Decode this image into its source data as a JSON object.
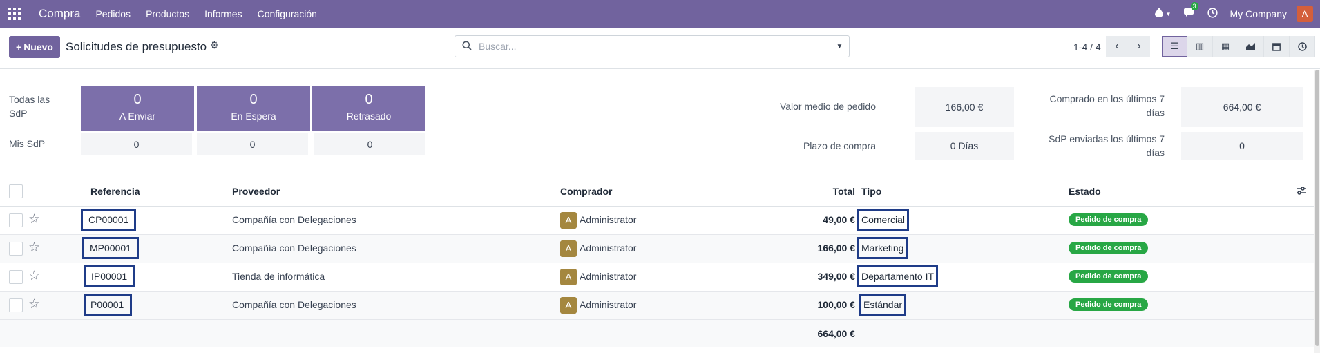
{
  "navbar": {
    "brand": "Compra",
    "menu": [
      "Pedidos",
      "Productos",
      "Informes",
      "Configuración"
    ],
    "messages_count": "3",
    "company": "My Company",
    "user_initial": "A"
  },
  "control": {
    "new_label": "Nuevo",
    "new_icon": "+",
    "title": "Solicitudes de presupuesto",
    "search_placeholder": "Buscar...",
    "pager": "1-4 / 4"
  },
  "dashboard": {
    "all_rfq_label": "Todas las SdP",
    "my_rfq_label": "Mis SdP",
    "tiles": [
      {
        "value": "0",
        "label": "A Enviar",
        "mine": "0"
      },
      {
        "value": "0",
        "label": "En Espera",
        "mine": "0"
      },
      {
        "value": "0",
        "label": "Retrasado",
        "mine": "0"
      }
    ],
    "kpis": {
      "avg_order_label": "Valor medio de pedido",
      "avg_order_value": "166,00 €",
      "lead_time_label": "Plazo de compra",
      "lead_time_value": "0 Días",
      "purchased_7d_label": "Comprado en los últimos 7 días",
      "purchased_7d_value": "664,00 €",
      "sent_7d_label": "SdP enviadas los últimos 7 días",
      "sent_7d_value": "0"
    }
  },
  "table": {
    "columns": {
      "reference": "Referencia",
      "vendor": "Proveedor",
      "buyer": "Comprador",
      "total": "Total",
      "type": "Tipo",
      "status": "Estado"
    },
    "rows": [
      {
        "reference": "CP00001",
        "vendor": "Compañía con Delegaciones",
        "buyer_initial": "A",
        "buyer": "Administrator",
        "total": "49,00 €",
        "type": "Comercial",
        "status": "Pedido de compra"
      },
      {
        "reference": "MP00001",
        "vendor": "Compañía con Delegaciones",
        "buyer_initial": "A",
        "buyer": "Administrator",
        "total": "166,00 €",
        "type": "Marketing",
        "status": "Pedido de compra"
      },
      {
        "reference": "IP00001",
        "vendor": "Tienda de informática",
        "buyer_initial": "A",
        "buyer": "Administrator",
        "total": "349,00 €",
        "type": "Departamento IT",
        "status": "Pedido de compra"
      },
      {
        "reference": "P00001",
        "vendor": "Compañía con Delegaciones",
        "buyer_initial": "A",
        "buyer": "Administrator",
        "total": "100,00 €",
        "type": "Estándar",
        "status": "Pedido de compra"
      }
    ],
    "grand_total": "664,00 €"
  },
  "colors": {
    "brand": "#71639e",
    "tile": "#7c6faa",
    "status_green": "#28a745",
    "highlight_box": "#1f3c88"
  }
}
